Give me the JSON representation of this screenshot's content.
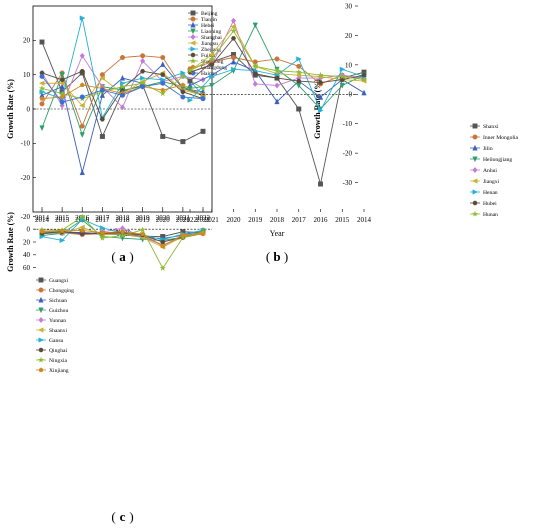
{
  "figure": {
    "panel_labels": [
      "a",
      "b",
      "c"
    ]
  },
  "chart_data": [
    {
      "type": "line",
      "panel": "a",
      "xlabel": "Year",
      "ylabel": "Growth Rate (%)",
      "ylim": [
        -30,
        30
      ],
      "yticks": [
        -20,
        -10,
        0,
        10,
        20
      ],
      "x": [
        2014,
        2015,
        2016,
        2017,
        2018,
        2019,
        2020,
        2021,
        2022
      ],
      "reference_line": 0,
      "legend_position": "top-right",
      "series": [
        {
          "name": "Beijing",
          "color": "#555555",
          "marker": "square",
          "values": [
            19.5,
            5,
            10.5,
            -8,
            5,
            7,
            -8,
            -9.5,
            -6.5
          ]
        },
        {
          "name": "Tianjin",
          "color": "#c8743a",
          "marker": "circle",
          "values": [
            1.5,
            10.5,
            -5,
            10,
            15,
            15.5,
            15,
            6,
            4
          ]
        },
        {
          "name": "Hebei",
          "color": "#3c5fbf",
          "marker": "triangle-up",
          "values": [
            4,
            6.5,
            -18.5,
            4,
            9,
            7.5,
            13,
            6,
            5
          ]
        },
        {
          "name": "Liaoning",
          "color": "#2e9e6b",
          "marker": "triangle-down",
          "values": [
            -5.5,
            10,
            -7.5,
            6.5,
            5.5,
            6.5,
            8,
            6.5,
            4
          ]
        },
        {
          "name": "Shanghai",
          "color": "#c47bd6",
          "marker": "diamond",
          "values": [
            10.5,
            1,
            15.5,
            6.5,
            0.5,
            14,
            8,
            9.5,
            8.5
          ]
        },
        {
          "name": "Jiangsu",
          "color": "#c9b23a",
          "marker": "triangle-left",
          "values": [
            7.5,
            7.5,
            1,
            9,
            4.5,
            8,
            10.5,
            5.5,
            4
          ]
        },
        {
          "name": "Zhejiang",
          "color": "#27b0d6",
          "marker": "triangle-right",
          "values": [
            5,
            3,
            26.5,
            -2.5,
            7.5,
            9,
            8.5,
            10.5,
            4
          ]
        },
        {
          "name": "Fujian",
          "color": "#5a4a3a",
          "marker": "hexagon",
          "values": [
            10.5,
            8.5,
            11,
            -3,
            6,
            11,
            10,
            5,
            3
          ]
        },
        {
          "name": "Shandong",
          "color": "#8bbb2e",
          "marker": "star",
          "values": [
            6,
            4.5,
            3,
            5,
            6.5,
            7.5,
            4.5,
            9.5,
            6
          ]
        },
        {
          "name": "Guangdong",
          "color": "#d08a1e",
          "marker": "pentagon",
          "values": [
            3,
            3.5,
            7,
            6,
            4.5,
            6.5,
            5.5,
            7,
            4
          ]
        },
        {
          "name": "Hainan",
          "color": "#3b6fd1",
          "marker": "circle",
          "values": [
            9.5,
            2,
            3.5,
            5.5,
            4,
            6.5,
            7.5,
            3.5,
            3
          ]
        }
      ]
    },
    {
      "type": "line",
      "panel": "b",
      "xlabel": "Year",
      "ylabel": "Growth Rate (%)",
      "ylim": [
        -40,
        30
      ],
      "yticks": [
        -30,
        -20,
        -10,
        0,
        10,
        20,
        30
      ],
      "x": [
        2014,
        2015,
        2016,
        2017,
        2018,
        2019,
        2020,
        2021,
        2022
      ],
      "reference_line": 0,
      "legend_position": "right",
      "series": [
        {
          "name": "Shanxi",
          "color": "#555555",
          "marker": "square",
          "values": [
            7.5,
            5.5,
            -30.5,
            -5,
            5.5,
            6.5,
            13.5,
            11,
            4.5
          ]
        },
        {
          "name": "Inner Mongolia",
          "color": "#c8743a",
          "marker": "circle",
          "values": [
            5,
            6.5,
            3.5,
            9.5,
            12,
            11,
            12.5,
            11,
            8.5
          ]
        },
        {
          "name": "Jilin",
          "color": "#3c5fbf",
          "marker": "triangle-up",
          "values": [
            0.5,
            5,
            -1,
            4.5,
            -2.5,
            8,
            11,
            6.5,
            3
          ]
        },
        {
          "name": "Heilongjiang",
          "color": "#2e9e6b",
          "marker": "triangle-down",
          "values": [
            6.5,
            3,
            -5,
            3,
            8.5,
            23.5,
            8,
            3,
            2
          ]
        },
        {
          "name": "Anhui",
          "color": "#c47bd6",
          "marker": "diamond",
          "values": [
            5.5,
            6.5,
            5.5,
            5.5,
            3,
            3.5,
            25,
            10,
            7.5
          ]
        },
        {
          "name": "Jiangxi",
          "color": "#c9b23a",
          "marker": "triangle-left",
          "values": [
            4.5,
            5,
            6,
            6.5,
            7,
            9.5,
            23,
            13.5,
            8
          ]
        },
        {
          "name": "Henan",
          "color": "#27b0d6",
          "marker": "triangle-right",
          "values": [
            6,
            8.5,
            -5.5,
            12,
            6.5,
            8,
            8.5,
            6,
            -2
          ]
        },
        {
          "name": "Hubei",
          "color": "#5a4a3a",
          "marker": "hexagon",
          "values": [
            6.5,
            5,
            4,
            4.5,
            5.5,
            7,
            19,
            10,
            7.5
          ]
        },
        {
          "name": "Hunan",
          "color": "#8bbb2e",
          "marker": "star",
          "values": [
            5,
            6,
            6.5,
            7.5,
            8,
            9.5,
            21.5,
            12,
            8
          ]
        }
      ]
    },
    {
      "type": "line",
      "panel": "c",
      "xlabel": "Year",
      "ylabel": "Growth Rate (%)",
      "ylim": [
        -30,
        70
      ],
      "yticks": [
        -20,
        0,
        20,
        40,
        60
      ],
      "x": [
        2014,
        2015,
        2016,
        2017,
        2018,
        2019,
        2020,
        2021,
        2022
      ],
      "reference_line": 0,
      "legend_position": "top-left",
      "series": [
        {
          "name": "Guangxi",
          "color": "#555555",
          "marker": "square",
          "values": [
            5,
            4,
            5.5,
            6,
            8,
            11,
            11.5,
            4,
            5.5
          ]
        },
        {
          "name": "Chongqing",
          "color": "#c8743a",
          "marker": "circle",
          "values": [
            3,
            5.5,
            8.5,
            7,
            6,
            11,
            24.5,
            13,
            7
          ]
        },
        {
          "name": "Sichuan",
          "color": "#3c5fbf",
          "marker": "triangle-up",
          "values": [
            7,
            5.5,
            5,
            8,
            8.5,
            12.5,
            14.5,
            9.5,
            1.5
          ]
        },
        {
          "name": "Guizhou",
          "color": "#2e9e6b",
          "marker": "triangle-down",
          "values": [
            10,
            6.5,
            -14.5,
            11.5,
            14,
            16,
            17.5,
            12.5,
            2.5
          ]
        },
        {
          "name": "Yunnan",
          "color": "#c47bd6",
          "marker": "diamond",
          "values": [
            4,
            4.5,
            7.5,
            4.5,
            -1.5,
            12,
            25,
            11,
            5
          ]
        },
        {
          "name": "Shaanxi",
          "color": "#c9b23a",
          "marker": "triangle-left",
          "values": [
            5,
            6,
            -3,
            8.5,
            7.5,
            13,
            28,
            11.5,
            6
          ]
        },
        {
          "name": "Gansu",
          "color": "#27b0d6",
          "marker": "triangle-right",
          "values": [
            11.5,
            17.5,
            -15.5,
            -2,
            6,
            8.5,
            16.5,
            7.5,
            2
          ]
        },
        {
          "name": "Qinghai",
          "color": "#5a4a3a",
          "marker": "hexagon",
          "values": [
            6.5,
            4,
            7,
            6,
            5.5,
            9,
            20,
            12.5,
            4.5
          ]
        },
        {
          "name": "Ningxia",
          "color": "#8bbb2e",
          "marker": "star",
          "values": [
            1,
            1.5,
            -19.5,
            14,
            10,
            1,
            61,
            13,
            4
          ]
        },
        {
          "name": "Xinjiang",
          "color": "#d08a1e",
          "marker": "pentagon",
          "values": [
            3.5,
            2.5,
            2,
            5.5,
            4,
            7.5,
            26.5,
            9,
            6.5
          ]
        }
      ]
    }
  ]
}
